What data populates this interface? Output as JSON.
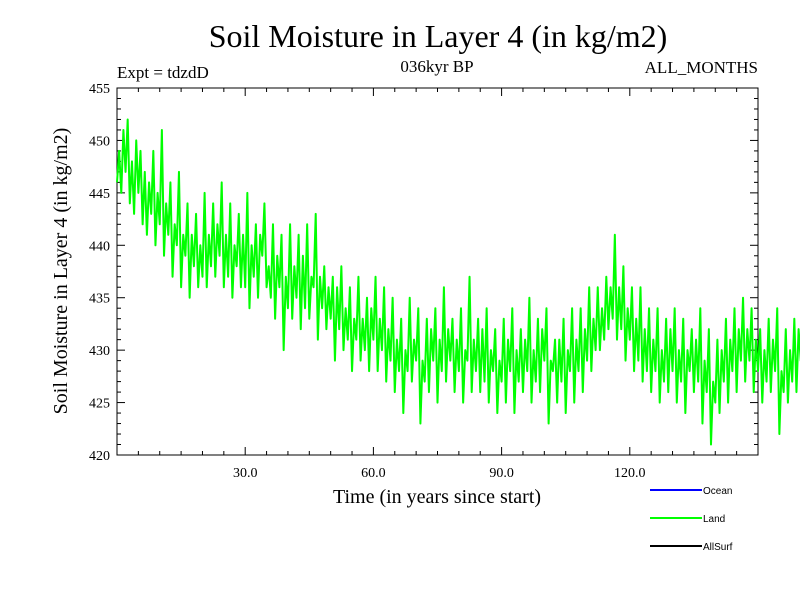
{
  "chart_data": {
    "type": "line",
    "title": "Soil Moisture in Layer 4 (in kg/m2)",
    "left_label": "Expt = tdzdD",
    "subtitle": "036kyr BP",
    "right_label": "ALL_MONTHS",
    "xlabel": "Time (in years since start)",
    "ylabel": "Soil Moisture in Layer 4 (in kg/m2)",
    "xlim": [
      0,
      150
    ],
    "ylim": [
      420,
      455
    ],
    "x_ticks": [
      30,
      60,
      90,
      120
    ],
    "x_tick_labels": [
      "30.0",
      "60.0",
      "90.0",
      "120.0"
    ],
    "y_ticks": [
      420,
      425,
      430,
      435,
      440,
      445,
      450,
      455
    ],
    "y_tick_labels": [
      "420",
      "425",
      "430",
      "435",
      "440",
      "445",
      "450",
      "455"
    ],
    "legend": [
      {
        "name": "Ocean",
        "color": "#0000ff"
      },
      {
        "name": "Land",
        "color": "#00ff00"
      },
      {
        "name": "AllSurf",
        "color": "#000000"
      }
    ],
    "series": [
      {
        "name": "Land",
        "color": "#00ff00",
        "x_start": 0,
        "x_step": 0.5,
        "values": [
          446,
          449,
          445,
          451,
          447,
          452,
          444,
          448,
          443,
          450,
          445,
          449,
          442,
          447,
          441,
          446,
          443,
          449,
          440,
          445,
          442,
          451,
          439,
          444,
          441,
          446,
          437,
          442,
          440,
          447,
          436,
          441,
          439,
          444,
          435,
          441,
          438,
          443,
          436,
          440,
          437,
          445,
          436,
          441,
          438,
          444,
          437,
          442,
          439,
          446,
          436,
          441,
          437,
          444,
          435,
          440,
          438,
          443,
          436,
          441,
          436,
          445,
          434,
          440,
          437,
          442,
          435,
          441,
          439,
          444,
          436,
          438,
          435,
          442,
          433,
          439,
          436,
          441,
          430,
          437,
          434,
          442,
          433,
          438,
          435,
          441,
          432,
          439,
          434,
          442,
          433,
          437,
          436,
          443,
          431,
          437,
          434,
          438,
          432,
          436,
          433,
          437,
          429,
          436,
          432,
          438,
          430,
          434,
          431,
          436,
          428,
          433,
          431,
          437,
          429,
          433,
          430,
          435,
          428,
          434,
          431,
          437,
          428,
          433,
          430,
          436,
          427,
          432,
          429,
          435,
          426,
          431,
          428,
          433,
          424,
          430,
          428,
          435,
          427,
          431,
          429,
          434,
          423,
          429,
          427,
          433,
          426,
          432,
          429,
          434,
          425,
          431,
          428,
          436,
          427,
          432,
          429,
          433,
          426,
          431,
          428,
          434,
          425,
          430,
          429,
          437,
          426,
          431,
          428,
          433,
          426,
          432,
          427,
          434,
          425,
          430,
          428,
          432,
          424,
          429,
          427,
          433,
          425,
          431,
          428,
          434,
          424,
          430,
          427,
          432,
          426,
          431,
          428,
          435,
          425,
          430,
          427,
          433,
          426,
          432,
          429,
          434,
          423,
          429,
          428,
          431,
          425,
          431,
          427,
          433,
          424,
          430,
          428,
          434,
          425,
          431,
          428,
          434,
          426,
          432,
          429,
          436,
          428,
          433,
          430,
          436,
          430,
          434,
          431,
          437,
          432,
          436,
          433,
          441,
          431,
          436,
          432,
          438,
          429,
          434,
          431,
          436,
          428,
          433,
          429,
          436,
          427,
          432,
          428,
          434,
          426,
          431,
          428,
          434,
          425,
          430,
          427,
          433,
          426,
          432,
          428,
          434,
          425,
          430,
          427,
          433,
          424,
          430,
          428,
          432,
          426,
          431,
          427,
          434,
          423,
          429,
          426,
          432,
          421,
          427,
          425,
          431,
          424,
          430,
          427,
          433,
          425,
          431,
          428,
          434,
          426,
          432,
          429,
          435,
          427,
          432,
          429,
          434,
          426,
          431,
          428,
          432,
          425,
          430,
          427,
          433,
          426,
          431,
          428,
          434,
          422,
          428,
          426,
          432,
          425,
          430,
          427,
          433,
          426,
          432,
          429,
          435,
          427,
          431,
          429,
          433,
          426,
          431,
          428,
          436,
          427,
          432,
          430,
          434,
          428,
          433,
          429,
          437,
          428,
          432,
          430,
          435,
          427,
          433,
          429,
          434,
          426,
          432,
          428,
          436,
          424,
          430,
          428,
          433,
          422,
          429,
          427,
          432,
          425,
          431,
          428,
          434,
          426,
          432,
          430,
          433,
          428,
          433,
          429,
          436,
          427,
          431,
          430,
          435,
          428,
          434,
          431,
          437,
          426,
          432,
          429,
          433,
          425,
          430,
          428,
          439,
          424,
          430,
          427,
          432,
          423,
          429,
          426,
          431,
          422,
          428,
          427,
          432,
          424,
          429,
          426,
          433,
          425,
          430,
          428,
          434,
          426,
          431,
          428,
          432,
          427,
          433,
          430,
          435,
          428,
          432,
          430,
          434,
          425,
          431,
          428,
          436,
          424,
          430,
          427,
          432,
          426,
          431,
          428,
          433,
          424,
          429,
          426,
          431,
          425,
          430,
          427,
          433,
          426,
          432,
          428,
          434,
          423,
          429,
          426,
          431,
          424,
          429,
          427,
          433,
          425,
          431,
          428,
          432,
          426,
          433,
          429,
          430
        ]
      }
    ]
  }
}
